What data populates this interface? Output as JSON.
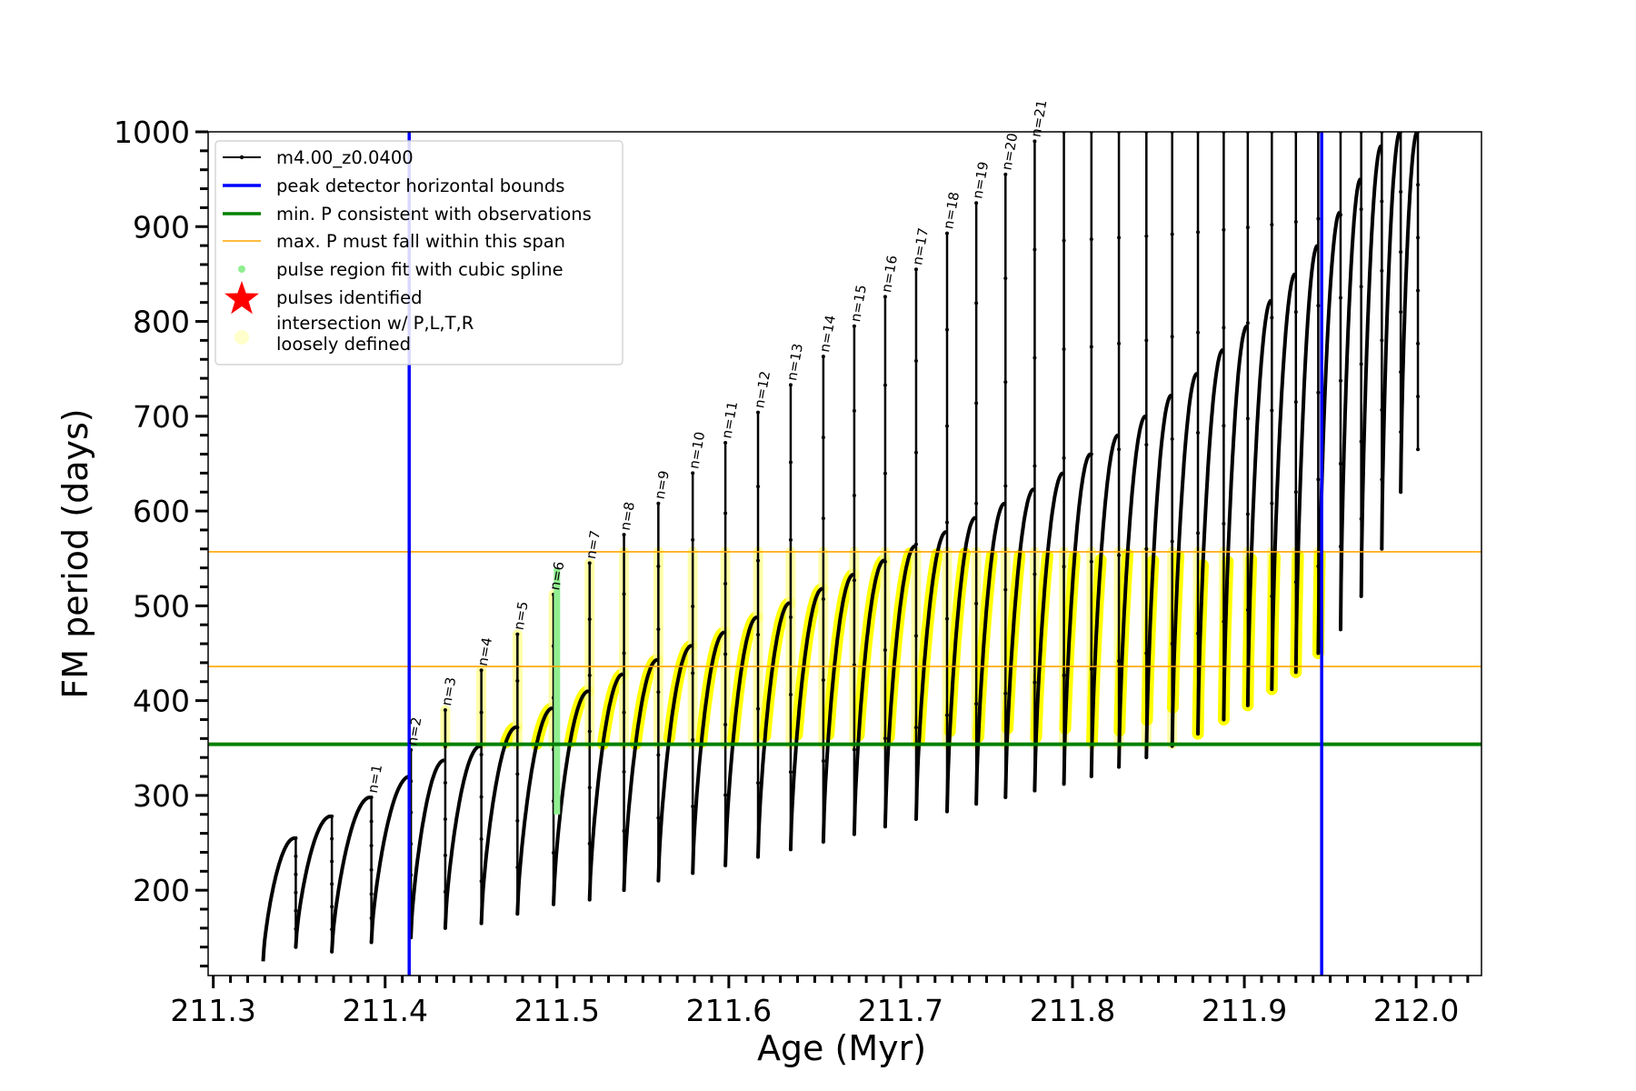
{
  "chart_data": {
    "type": "line",
    "xlabel": "Age (Myr)",
    "ylabel": "FM period (days)",
    "xlim": [
      211.297,
      212.038
    ],
    "ylim": [
      110,
      1000
    ],
    "x_ticks": [
      "211.3",
      "211.4",
      "211.5",
      "211.6",
      "211.7",
      "211.8",
      "211.9",
      "212.0"
    ],
    "x_tick_values": [
      211.3,
      211.4,
      211.5,
      211.6,
      211.7,
      211.8,
      211.9,
      212.0
    ],
    "y_ticks": [
      "200",
      "300",
      "400",
      "500",
      "600",
      "700",
      "800",
      "900",
      "1000"
    ],
    "y_tick_values": [
      200,
      300,
      400,
      500,
      600,
      700,
      800,
      900,
      1000
    ],
    "legend_position": "upper-left",
    "legend": [
      {
        "label": "m4.00_z0.0400",
        "color": "#000000",
        "marker": "line-dot"
      },
      {
        "label": "peak detector horizontal bounds",
        "color": "#0000ff",
        "marker": "line"
      },
      {
        "label": "min. P consistent with observations",
        "color": "#008000",
        "marker": "line"
      },
      {
        "label": "max. P must fall within this span",
        "color": "#ffa500",
        "marker": "thin-line"
      },
      {
        "label": "pulse region fit with cubic spline",
        "color": "#90ee90",
        "marker": "dot"
      },
      {
        "label": "pulses identified",
        "color": "#ff0000",
        "marker": "star"
      },
      {
        "label": "intersection w/ P,L,T,R",
        "label2": "loosely defined",
        "color": "#ffffcc",
        "marker": "big-dot"
      }
    ],
    "vertical_lines": [
      {
        "x": 211.414,
        "color": "#0000ff",
        "name": "peak detector bound left"
      },
      {
        "x": 211.945,
        "color": "#0000ff",
        "name": "peak detector bound right"
      }
    ],
    "horizontal_lines": [
      {
        "y": 354,
        "color": "#008000",
        "name": "min P"
      },
      {
        "y": 436,
        "color": "#ffa500",
        "name": "max P lower"
      },
      {
        "y": 557,
        "color": "#ffa500",
        "name": "max P upper"
      }
    ],
    "series_color": "#000000",
    "highlight_color": "#ffff00",
    "spline_color": "#90ee90",
    "highlight_ymax": 557,
    "pulses": [
      {
        "start": 211.329,
        "end": 211.348,
        "y0": 125,
        "peak": 255,
        "spike": 255,
        "min": 140
      },
      {
        "start": 211.348,
        "end": 211.369,
        "y0": 140,
        "peak": 278,
        "spike": 278,
        "min": 135
      },
      {
        "start": 211.369,
        "end": 211.392,
        "y0": 135,
        "peak": 298,
        "spike": 298,
        "min": 145,
        "label": "n=1"
      },
      {
        "start": 211.392,
        "end": 211.415,
        "y0": 145,
        "peak": 320,
        "spike": 348,
        "min": 150,
        "label": "n=2"
      },
      {
        "start": 211.415,
        "end": 211.435,
        "y0": 150,
        "peak": 337,
        "spike": 390,
        "min": 160,
        "label": "n=3"
      },
      {
        "start": 211.435,
        "end": 211.456,
        "y0": 160,
        "peak": 352,
        "spike": 432,
        "min": 165,
        "label": "n=4"
      },
      {
        "start": 211.456,
        "end": 211.477,
        "y0": 165,
        "peak": 372,
        "spike": 470,
        "min": 175,
        "label": "n=5"
      },
      {
        "start": 211.477,
        "end": 211.498,
        "y0": 175,
        "peak": 392,
        "spike": 512,
        "min": 185,
        "label": "n=6"
      },
      {
        "start": 211.498,
        "end": 211.519,
        "y0": 185,
        "peak": 410,
        "spike": 545,
        "min": 190,
        "label": "n=7"
      },
      {
        "start": 211.519,
        "end": 211.539,
        "y0": 190,
        "peak": 428,
        "spike": 575,
        "min": 200,
        "label": "n=8"
      },
      {
        "start": 211.539,
        "end": 211.559,
        "y0": 200,
        "peak": 443,
        "spike": 608,
        "min": 210,
        "label": "n=9"
      },
      {
        "start": 211.559,
        "end": 211.579,
        "y0": 210,
        "peak": 458,
        "spike": 640,
        "min": 218,
        "label": "n=10"
      },
      {
        "start": 211.579,
        "end": 211.598,
        "y0": 218,
        "peak": 472,
        "spike": 672,
        "min": 226,
        "label": "n=11"
      },
      {
        "start": 211.598,
        "end": 211.617,
        "y0": 226,
        "peak": 488,
        "spike": 704,
        "min": 235,
        "label": "n=12"
      },
      {
        "start": 211.617,
        "end": 211.636,
        "y0": 235,
        "peak": 503,
        "spike": 733,
        "min": 243,
        "label": "n=13"
      },
      {
        "start": 211.636,
        "end": 211.655,
        "y0": 243,
        "peak": 518,
        "spike": 763,
        "min": 251,
        "label": "n=14"
      },
      {
        "start": 211.655,
        "end": 211.673,
        "y0": 251,
        "peak": 533,
        "spike": 795,
        "min": 259,
        "label": "n=15"
      },
      {
        "start": 211.673,
        "end": 211.691,
        "y0": 259,
        "peak": 548,
        "spike": 826,
        "min": 267,
        "label": "n=16"
      },
      {
        "start": 211.691,
        "end": 211.709,
        "y0": 267,
        "peak": 563,
        "spike": 855,
        "min": 275,
        "label": "n=17"
      },
      {
        "start": 211.709,
        "end": 211.727,
        "y0": 275,
        "peak": 578,
        "spike": 893,
        "min": 283,
        "label": "n=18"
      },
      {
        "start": 211.727,
        "end": 211.744,
        "y0": 283,
        "peak": 593,
        "spike": 925,
        "min": 291,
        "label": "n=19"
      },
      {
        "start": 211.744,
        "end": 211.761,
        "y0": 291,
        "peak": 608,
        "spike": 955,
        "min": 298,
        "label": "n=20"
      },
      {
        "start": 211.761,
        "end": 211.778,
        "y0": 298,
        "peak": 623,
        "spike": 990,
        "min": 305,
        "label": "n=21"
      },
      {
        "start": 211.778,
        "end": 211.795,
        "y0": 305,
        "peak": 640,
        "spike": 1000,
        "min": 312
      },
      {
        "start": 211.795,
        "end": 211.811,
        "y0": 312,
        "peak": 660,
        "spike": 1000,
        "min": 320
      },
      {
        "start": 211.811,
        "end": 211.827,
        "y0": 320,
        "peak": 680,
        "spike": 1000,
        "min": 330
      },
      {
        "start": 211.827,
        "end": 211.843,
        "y0": 330,
        "peak": 700,
        "spike": 1000,
        "min": 340
      },
      {
        "start": 211.843,
        "end": 211.858,
        "y0": 340,
        "peak": 722,
        "spike": 1000,
        "min": 352
      },
      {
        "start": 211.858,
        "end": 211.873,
        "y0": 352,
        "peak": 745,
        "spike": 1000,
        "min": 365
      },
      {
        "start": 211.873,
        "end": 211.888,
        "y0": 365,
        "peak": 770,
        "spike": 1000,
        "min": 380
      },
      {
        "start": 211.888,
        "end": 211.902,
        "y0": 380,
        "peak": 795,
        "spike": 1000,
        "min": 395
      },
      {
        "start": 211.902,
        "end": 211.916,
        "y0": 395,
        "peak": 822,
        "spike": 1000,
        "min": 412
      },
      {
        "start": 211.916,
        "end": 211.93,
        "y0": 412,
        "peak": 850,
        "spike": 1000,
        "min": 430
      },
      {
        "start": 211.93,
        "end": 211.943,
        "y0": 430,
        "peak": 880,
        "spike": 1000,
        "min": 450
      },
      {
        "start": 211.943,
        "end": 211.956,
        "y0": 450,
        "peak": 915,
        "spike": 1000,
        "min": 475
      },
      {
        "start": 211.956,
        "end": 211.968,
        "y0": 475,
        "peak": 950,
        "spike": 1000,
        "min": 510
      },
      {
        "start": 211.968,
        "end": 211.98,
        "y0": 510,
        "peak": 985,
        "spike": 1000,
        "min": 560
      },
      {
        "start": 211.98,
        "end": 211.991,
        "y0": 560,
        "peak": 1000,
        "spike": 1000,
        "min": 620
      },
      {
        "start": 211.991,
        "end": 212.001,
        "y0": 620,
        "peak": 1000,
        "spike": 1000,
        "min": 665
      }
    ],
    "spline_region": {
      "x": 211.5,
      "ymin": 280,
      "ymax": 540
    }
  }
}
